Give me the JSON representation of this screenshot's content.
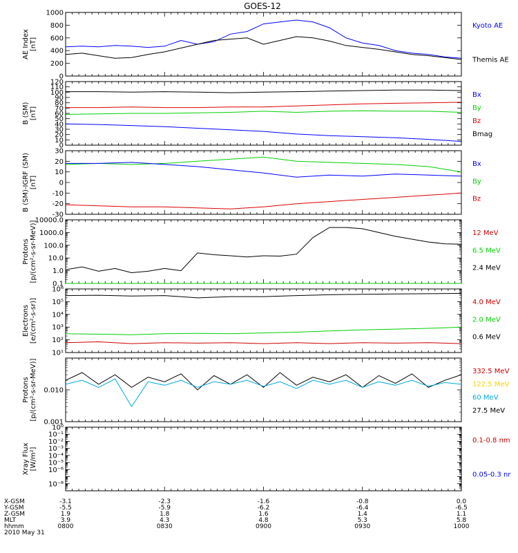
{
  "title": "GOES-12",
  "colors": {
    "black": "#000000",
    "blue": "#0000ff",
    "green": "#00d000",
    "red": "#dd0000",
    "cyan": "#00a8e0",
    "yellow": "#ffd000",
    "dred": "#cc0000"
  },
  "chart_data": [
    {
      "id": "ae",
      "type": "line",
      "ylabel": [
        "AE Index",
        "[nT]"
      ],
      "scale": "linear",
      "ylim": [
        0,
        1000
      ],
      "yticks": [
        0,
        200,
        400,
        600,
        800,
        1000
      ],
      "ytick_labels": [
        "0",
        "200",
        "400",
        "600",
        "800",
        "1000"
      ],
      "legend": [
        {
          "name": "Kyoto AE",
          "color": "blue"
        },
        {
          "name": "Themis AE",
          "color": "black"
        }
      ],
      "series": [
        {
          "name": "Kyoto AE",
          "color": "blue",
          "x": [
            0,
            5,
            10,
            15,
            20,
            25,
            30,
            35,
            40,
            45,
            50,
            55,
            60,
            65,
            70,
            75,
            80,
            85,
            90,
            95,
            100,
            105,
            110,
            115,
            120
          ],
          "y": [
            460,
            470,
            460,
            480,
            470,
            450,
            470,
            560,
            500,
            540,
            660,
            700,
            820,
            850,
            880,
            850,
            760,
            600,
            520,
            480,
            400,
            360,
            340,
            300,
            280
          ]
        },
        {
          "name": "Themis AE",
          "color": "black",
          "x": [
            0,
            5,
            10,
            15,
            20,
            25,
            30,
            35,
            40,
            45,
            50,
            55,
            60,
            65,
            70,
            75,
            80,
            85,
            90,
            95,
            100,
            105,
            110,
            115,
            120
          ],
          "y": [
            340,
            360,
            320,
            280,
            290,
            340,
            380,
            440,
            500,
            560,
            580,
            600,
            500,
            560,
            620,
            600,
            550,
            480,
            450,
            420,
            380,
            340,
            320,
            290,
            260
          ]
        }
      ]
    },
    {
      "id": "bsm",
      "type": "line",
      "ylabel": [
        "B (SM)",
        "[nT]"
      ],
      "scale": "linear",
      "ylim": [
        0,
        120
      ],
      "yticks": [
        0,
        10,
        20,
        30,
        40,
        50,
        60,
        70,
        80,
        90,
        100,
        110,
        120
      ],
      "ytick_labels": [
        "0",
        "10",
        "20",
        "30",
        "40",
        "50",
        "60",
        "70",
        "80",
        "90",
        "100",
        "110",
        "120"
      ],
      "legend": [
        {
          "name": "Bx",
          "color": "blue"
        },
        {
          "name": "By",
          "color": "green"
        },
        {
          "name": "Bz",
          "color": "red"
        },
        {
          "name": "Bmag",
          "color": "black"
        }
      ],
      "series": [
        {
          "name": "Bmag",
          "color": "black",
          "x": [
            0,
            10,
            20,
            30,
            40,
            50,
            60,
            70,
            80,
            90,
            100,
            110,
            120
          ],
          "y": [
            101,
            101,
            100,
            101,
            100,
            99,
            100,
            101,
            102,
            103,
            104,
            104,
            103
          ]
        },
        {
          "name": "Bz",
          "color": "red",
          "x": [
            0,
            10,
            20,
            30,
            40,
            50,
            60,
            70,
            80,
            90,
            100,
            110,
            120
          ],
          "y": [
            71,
            71,
            72,
            71,
            71,
            72,
            72,
            74,
            76,
            78,
            79,
            80,
            81
          ]
        },
        {
          "name": "By",
          "color": "green",
          "x": [
            0,
            10,
            20,
            30,
            40,
            50,
            60,
            70,
            80,
            90,
            100,
            110,
            120
          ],
          "y": [
            58,
            59,
            60,
            60,
            61,
            62,
            64,
            62,
            64,
            65,
            64,
            64,
            62
          ]
        },
        {
          "name": "Bx",
          "color": "blue",
          "x": [
            0,
            10,
            20,
            30,
            40,
            50,
            60,
            70,
            80,
            90,
            100,
            110,
            120
          ],
          "y": [
            40,
            39,
            37,
            35,
            32,
            29,
            26,
            21,
            18,
            16,
            14,
            11,
            7
          ]
        }
      ]
    },
    {
      "id": "bdiff",
      "type": "line",
      "ylabel": [
        "B (SM)-IGRF (SM)",
        "[nT]"
      ],
      "scale": "linear",
      "ylim": [
        -30,
        30
      ],
      "yticks": [
        -30,
        -20,
        -10,
        0,
        10,
        20,
        30
      ],
      "ytick_labels": [
        "-30",
        "-20",
        "-10",
        "0",
        "10",
        "20",
        "30"
      ],
      "legend": [
        {
          "name": "Bx",
          "color": "blue"
        },
        {
          "name": "By",
          "color": "green"
        },
        {
          "name": "Bz",
          "color": "red"
        }
      ],
      "series": [
        {
          "name": "By",
          "color": "green",
          "x": [
            0,
            10,
            20,
            30,
            40,
            50,
            60,
            70,
            80,
            90,
            100,
            110,
            120
          ],
          "y": [
            17,
            18,
            17,
            18,
            20,
            22,
            24,
            20,
            19,
            18,
            17,
            15,
            10
          ]
        },
        {
          "name": "Bx",
          "color": "blue",
          "x": [
            0,
            10,
            20,
            30,
            40,
            50,
            60,
            70,
            80,
            90,
            100,
            110,
            120
          ],
          "y": [
            18,
            18,
            19,
            17,
            15,
            12,
            9,
            5,
            7,
            6,
            8,
            7,
            6
          ]
        },
        {
          "name": "Bz",
          "color": "red",
          "x": [
            0,
            10,
            20,
            30,
            40,
            50,
            60,
            70,
            80,
            90,
            100,
            110,
            120
          ],
          "y": [
            -21,
            -22,
            -23,
            -23,
            -24,
            -25,
            -23,
            -20,
            -18,
            -16,
            -14,
            -12,
            -10
          ]
        }
      ]
    },
    {
      "id": "protons",
      "type": "line",
      "ylabel": [
        "Protons",
        "[p/(cm²-s-sr-MeV)]"
      ],
      "scale": "log",
      "ylim": [
        0.1,
        10000
      ],
      "yticks": [
        0.1,
        1,
        10,
        100,
        1000,
        10000
      ],
      "ytick_labels": [
        "0.1",
        "1.0",
        "10.0",
        "100.0",
        "1000.0",
        "10000.0"
      ],
      "legend": [
        {
          "name": "12 MeV",
          "color": "dred"
        },
        {
          "name": "6.5 MeV",
          "color": "green"
        },
        {
          "name": "2.4 MeV",
          "color": "black"
        }
      ],
      "series": [
        {
          "name": "2.4 MeV",
          "color": "black",
          "x": [
            0,
            5,
            10,
            15,
            20,
            25,
            30,
            35,
            40,
            45,
            50,
            55,
            60,
            65,
            70,
            75,
            80,
            85,
            90,
            95,
            100,
            105,
            110,
            115,
            120
          ],
          "y": [
            1.2,
            2,
            0.9,
            1.5,
            0.7,
            0.9,
            1.5,
            1,
            25,
            18,
            15,
            12,
            15,
            14,
            20,
            400,
            2500,
            2500,
            2000,
            1000,
            500,
            300,
            180,
            130,
            120
          ]
        },
        {
          "name": "6.5 MeV",
          "color": "green",
          "x": [
            0,
            5,
            10,
            15,
            20,
            25,
            30,
            35,
            40,
            45,
            50,
            55,
            60,
            65,
            70,
            75,
            80,
            85,
            90,
            95,
            100,
            105,
            110,
            115,
            120
          ],
          "y": [
            0.1,
            0.1,
            0.1,
            0.1,
            0.1,
            0.1,
            0.1,
            0.1,
            0.1,
            0.1,
            0.1,
            0.1,
            0.1,
            0.1,
            0.1,
            0.1,
            0.1,
            0.1,
            0.1,
            0.1,
            0.1,
            0.1,
            0.1,
            0.1,
            0.1
          ]
        }
      ]
    },
    {
      "id": "electrons",
      "type": "line",
      "ylabel": [
        "Electrons",
        "[e/(cm²-s-sr)]"
      ],
      "scale": "log",
      "ylim": [
        10,
        1000000
      ],
      "yticks": [
        10,
        100,
        1000,
        10000,
        100000,
        1000000
      ],
      "ytick_labels": [
        "10¹",
        "10²",
        "10³",
        "10⁴",
        "10⁵",
        "10⁶"
      ],
      "legend": [
        {
          "name": "4.0 MeV",
          "color": "dred"
        },
        {
          "name": "2.0 MeV",
          "color": "green"
        },
        {
          "name": "0.6 MeV",
          "color": "black"
        }
      ],
      "series": [
        {
          "name": "0.6 MeV",
          "color": "black",
          "x": [
            0,
            10,
            20,
            30,
            40,
            50,
            60,
            70,
            80,
            90,
            100,
            110,
            120
          ],
          "y": [
            300000,
            320000,
            280000,
            300000,
            200000,
            250000,
            250000,
            300000,
            350000,
            380000,
            400000,
            420000,
            450000
          ]
        },
        {
          "name": "2.0 MeV",
          "color": "green",
          "x": [
            0,
            10,
            20,
            30,
            40,
            50,
            60,
            70,
            80,
            90,
            100,
            110,
            120
          ],
          "y": [
            300,
            280,
            250,
            300,
            320,
            300,
            350,
            400,
            500,
            600,
            700,
            800,
            1000
          ]
        },
        {
          "name": "4.0 MeV",
          "color": "dred",
          "x": [
            0,
            10,
            20,
            30,
            40,
            50,
            60,
            70,
            80,
            90,
            100,
            110,
            120
          ],
          "y": [
            60,
            70,
            50,
            60,
            55,
            60,
            50,
            60,
            50,
            60,
            55,
            60,
            50
          ]
        }
      ]
    },
    {
      "id": "hprotons",
      "type": "line",
      "ylabel": [
        "Protons",
        "[p/(cm²-s-sr-MeV)]"
      ],
      "scale": "log",
      "ylim": [
        0.001,
        0.1
      ],
      "yticks": [
        0.001,
        0.01,
        0.1
      ],
      "ytick_labels": [
        "0.001",
        "0.010",
        ""
      ],
      "legend": [
        {
          "name": "332.5 MeV",
          "color": "dred"
        },
        {
          "name": "122.5 MeV",
          "color": "yellow"
        },
        {
          "name": "60 MeV",
          "color": "cyan"
        },
        {
          "name": "27.5 MeV",
          "color": "black"
        }
      ],
      "series": [
        {
          "name": "27.5 MeV",
          "color": "black",
          "x": [
            0,
            5,
            10,
            15,
            20,
            25,
            30,
            35,
            40,
            45,
            50,
            55,
            60,
            65,
            70,
            75,
            80,
            85,
            90,
            95,
            100,
            105,
            110,
            115,
            120
          ],
          "y": [
            0.02,
            0.035,
            0.015,
            0.03,
            0.012,
            0.025,
            0.018,
            0.032,
            0.01,
            0.028,
            0.015,
            0.03,
            0.012,
            0.035,
            0.014,
            0.025,
            0.018,
            0.03,
            0.012,
            0.028,
            0.016,
            0.032,
            0.012,
            0.02,
            0.03
          ]
        },
        {
          "name": "60 MeV",
          "color": "cyan",
          "x": [
            0,
            5,
            10,
            15,
            20,
            25,
            30,
            35,
            40,
            45,
            50,
            55,
            60,
            65,
            70,
            75,
            80,
            85,
            90,
            95,
            100,
            105,
            110,
            115,
            120
          ],
          "y": [
            0.015,
            0.02,
            0.012,
            0.022,
            0.003,
            0.018,
            0.014,
            0.02,
            0.012,
            0.018,
            0.015,
            0.02,
            0.013,
            0.018,
            0.011,
            0.02,
            0.015,
            0.02,
            0.012,
            0.018,
            0.014,
            0.02,
            0.013,
            0.017,
            0.015
          ]
        }
      ]
    },
    {
      "id": "xray",
      "type": "line",
      "ylabel": [
        "Xray Flux",
        "[W/m²]"
      ],
      "scale": "log",
      "ylim": [
        1e-09,
        1
      ],
      "yticks": [
        1e-09,
        1e-08,
        1e-07,
        1e-06,
        1e-05,
        0.0001,
        0.001,
        0.01,
        0.1,
        1
      ],
      "ytick_labels": [
        "",
        "10⁻⁸",
        "",
        "10⁻⁶",
        "10⁻⁵",
        "10⁻⁴",
        "10⁻³",
        "10⁻²",
        "10⁻¹",
        "10⁰"
      ],
      "legend": [
        {
          "name": "0.1-0.8 nm",
          "color": "dred"
        },
        {
          "name": "0.05-0.3 nr",
          "color": "blue"
        }
      ],
      "series": []
    }
  ],
  "x_axis": {
    "xlim": [
      0,
      120
    ],
    "ticks": [
      0,
      30,
      60,
      90,
      120
    ],
    "rows": [
      {
        "label": "X-GSM",
        "values": [
          "-3.1",
          "-2.3",
          "-1.6",
          "-0.8",
          "0.0"
        ]
      },
      {
        "label": "Y-GSM",
        "values": [
          "-5.5",
          "-5.9",
          "-6.2",
          "-6.4",
          "-6.5"
        ]
      },
      {
        "label": "Z-GSM",
        "values": [
          "1.9",
          "1.8",
          "1.6",
          "1.4",
          "1.1"
        ]
      },
      {
        "label": "MLT",
        "values": [
          "3.9",
          "4.3",
          "4.8",
          "5.3",
          "5.8"
        ]
      },
      {
        "label": "hhmm",
        "values": [
          "0800",
          "0830",
          "0900",
          "0930",
          "1000"
        ]
      }
    ],
    "date": "2010 May 31"
  }
}
